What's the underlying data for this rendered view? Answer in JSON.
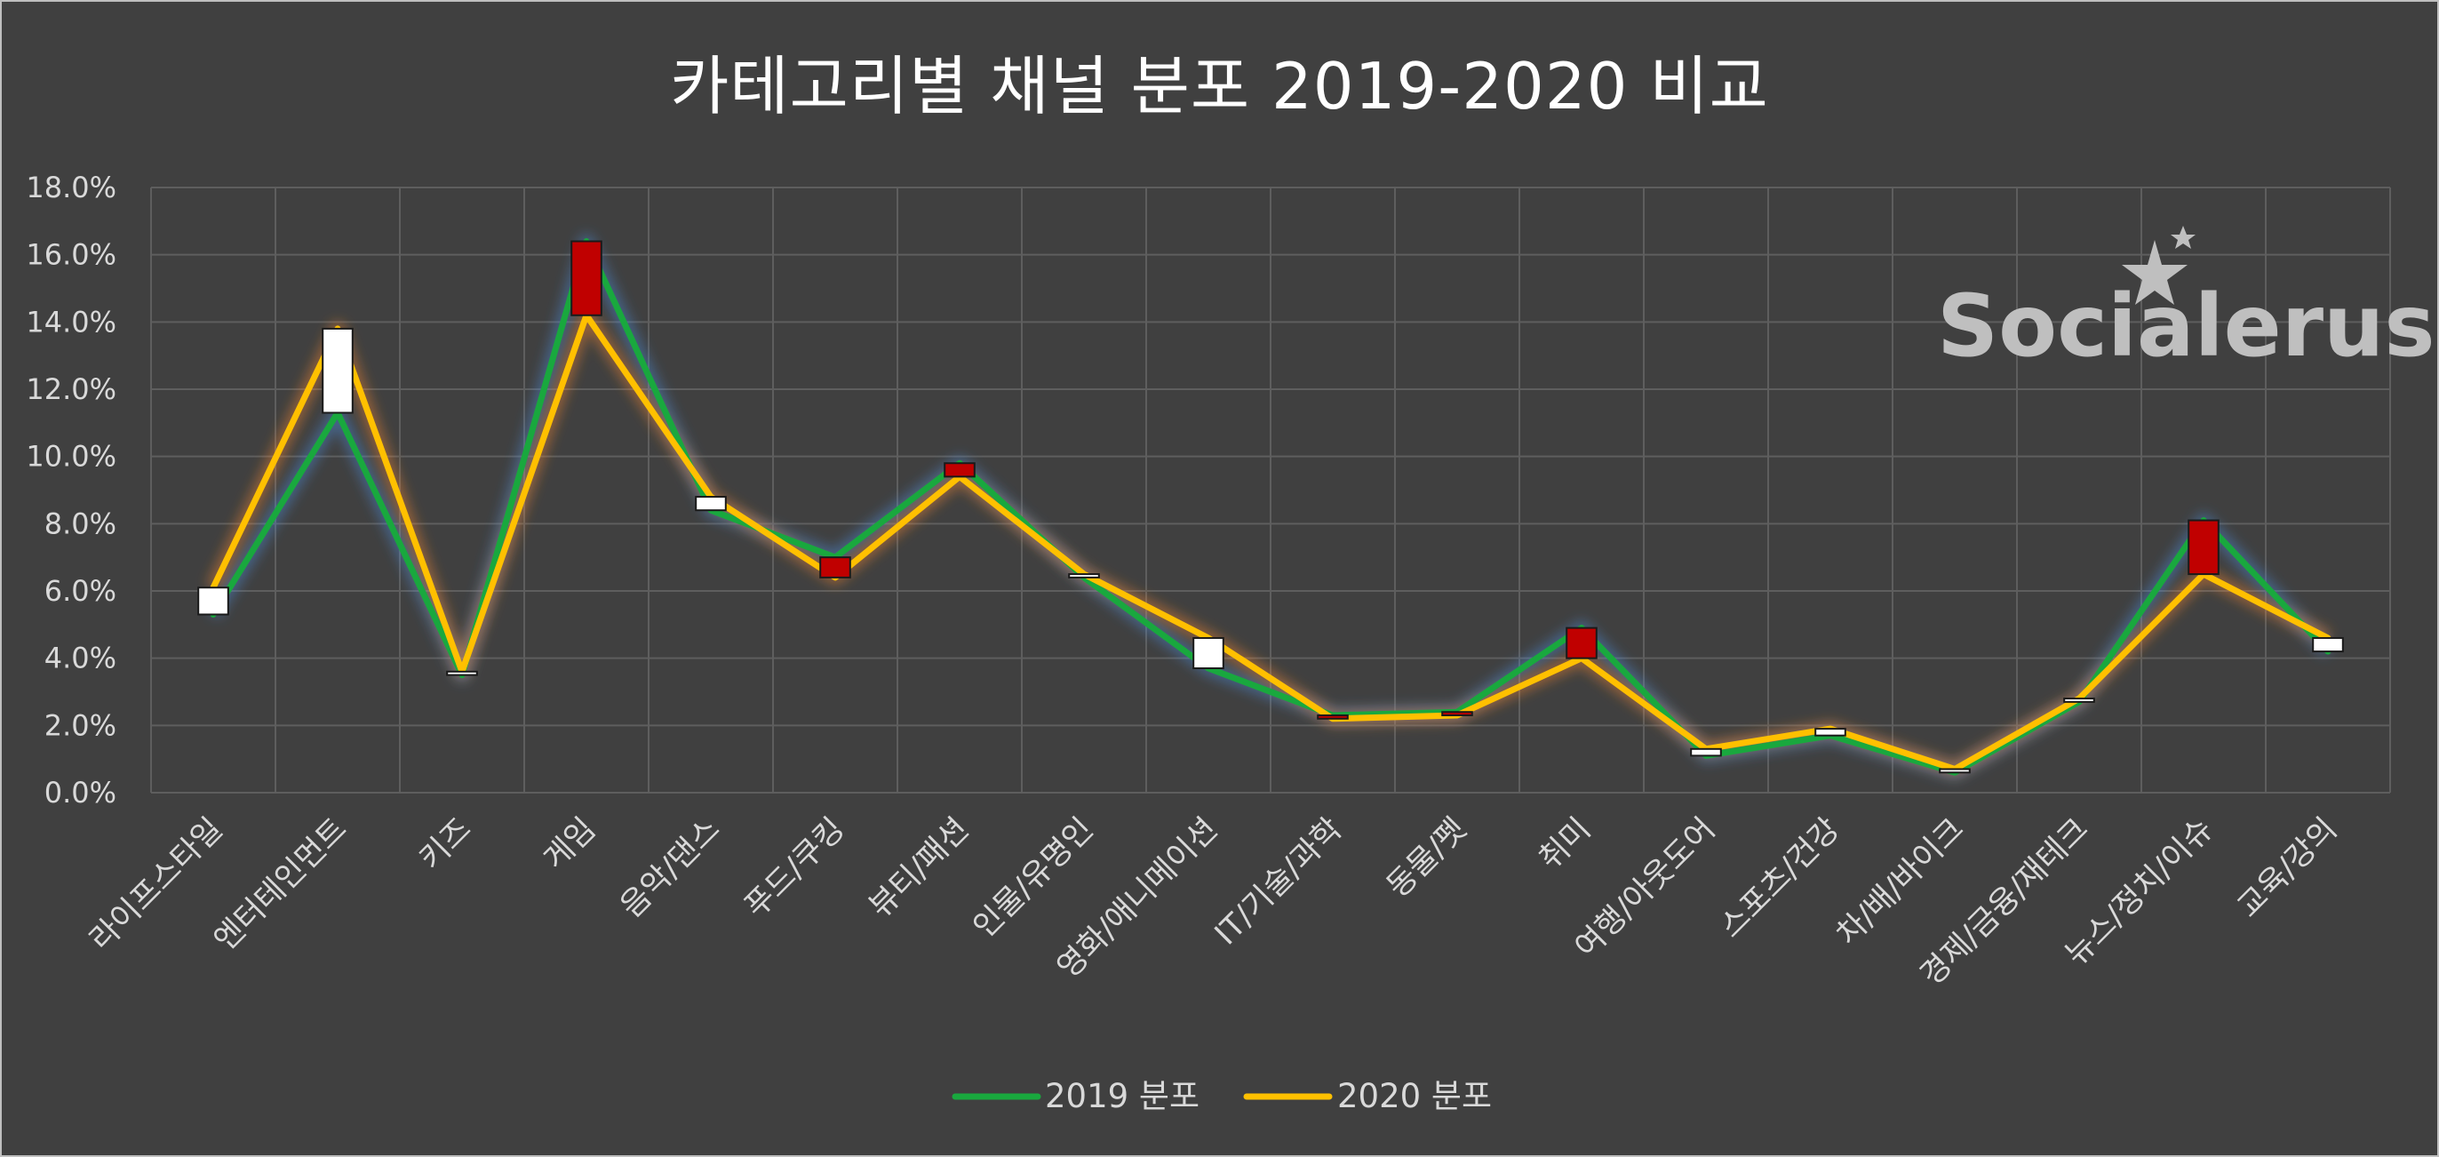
{
  "watermark": "Socialerus",
  "chart_data": {
    "type": "line",
    "title": "카테고리별 채널 분포 2019-2020 비교",
    "ylim": [
      0,
      18
    ],
    "yticks": [
      "0.0%",
      "2.0%",
      "4.0%",
      "6.0%",
      "8.0%",
      "10.0%",
      "12.0%",
      "14.0%",
      "16.0%",
      "18.0%"
    ],
    "grid": true,
    "legend_position": "bottom",
    "categories": [
      "라이프스타일",
      "엔터테인먼트",
      "키즈",
      "게임",
      "음악/댄스",
      "푸드/쿠킹",
      "뷰티/패션",
      "인물/유명인",
      "영화/애니메이션",
      "IT/기술/과학",
      "동물/펫",
      "취미",
      "여행/아웃도어",
      "스포츠/건강",
      "차/배/바이크",
      "경제/금융/재테크",
      "뉴스/정치/이슈",
      "교육/강의"
    ],
    "series": [
      {
        "name": "2019 분포",
        "color": "#19a83e",
        "values": [
          5.3,
          11.3,
          3.5,
          16.4,
          8.4,
          7.0,
          9.8,
          6.4,
          3.7,
          2.3,
          2.4,
          4.9,
          1.1,
          1.7,
          0.6,
          2.7,
          8.1,
          4.2
        ]
      },
      {
        "name": "2020 분포",
        "color": "#ffc000",
        "values": [
          6.1,
          13.8,
          3.6,
          14.2,
          8.8,
          6.4,
          9.4,
          6.5,
          4.6,
          2.2,
          2.3,
          4.0,
          1.3,
          1.9,
          0.7,
          2.8,
          6.5,
          4.6
        ]
      }
    ],
    "updown_bars": {
      "up_color": "#ffffff",
      "down_color": "#c00000"
    }
  }
}
